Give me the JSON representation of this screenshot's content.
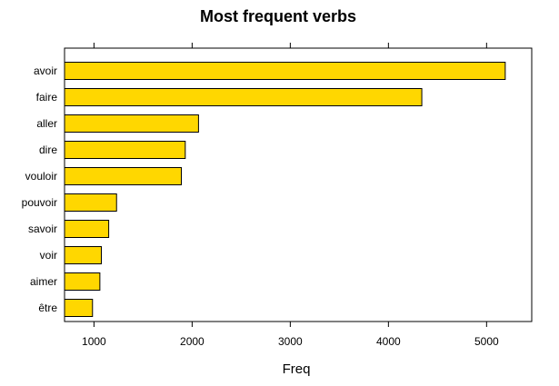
{
  "chart_data": {
    "type": "bar",
    "orientation": "horizontal",
    "title": "Most frequent verbs",
    "xlabel": "Freq",
    "ylabel": "",
    "categories": [
      "avoir",
      "faire",
      "aller",
      "dire",
      "vouloir",
      "pouvoir",
      "savoir",
      "voir",
      "aimer",
      "être"
    ],
    "values": [
      5190,
      4340,
      2065,
      1930,
      1890,
      1230,
      1150,
      1075,
      1060,
      985
    ],
    "xlim": [
      700,
      5460
    ],
    "x_ticks": [
      1000,
      2000,
      3000,
      4000,
      5000
    ],
    "x_tick_labels": [
      "1000",
      "2000",
      "3000",
      "4000",
      "5000"
    ],
    "grid": false,
    "legend": "none",
    "bar_color": "#FFD700",
    "bar_edge_color": "#000000"
  }
}
